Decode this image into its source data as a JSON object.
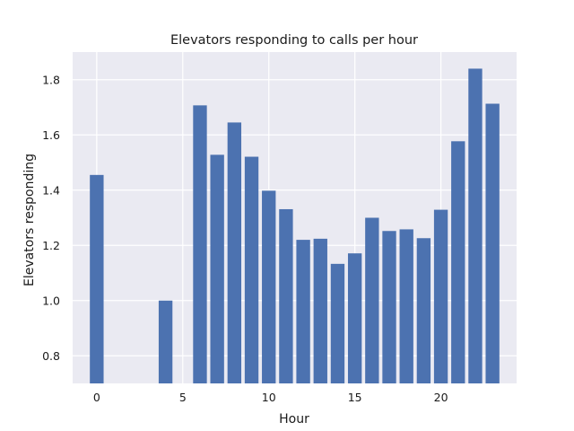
{
  "chart_data": {
    "type": "bar",
    "title": "Elevators responding to calls per hour",
    "xlabel": "Hour",
    "ylabel": "Elevators responding",
    "x": [
      0,
      4,
      6,
      7,
      8,
      9,
      10,
      11,
      12,
      13,
      14,
      15,
      16,
      17,
      18,
      19,
      20,
      21,
      22,
      23
    ],
    "values": [
      1.455,
      1.0,
      1.707,
      1.528,
      1.645,
      1.521,
      1.398,
      1.331,
      1.22,
      1.224,
      1.133,
      1.171,
      1.3,
      1.252,
      1.258,
      1.226,
      1.329,
      1.577,
      1.84,
      1.713
    ],
    "xlim": [
      -1.4,
      24.4
    ],
    "ylim": [
      0.7,
      1.9
    ],
    "xticks": [
      0,
      5,
      10,
      15,
      20
    ],
    "yticks": [
      0.8,
      1.0,
      1.2,
      1.4,
      1.6,
      1.8
    ],
    "xtick_labels": [
      "0",
      "5",
      "10",
      "15",
      "20"
    ],
    "ytick_labels": [
      "0.8",
      "1.0",
      "1.2",
      "1.4",
      "1.6",
      "1.8"
    ],
    "grid": true,
    "colors": {
      "bar": "#4c72b0",
      "plot_background": "#eaeaf2",
      "grid": "#ffffff"
    }
  }
}
